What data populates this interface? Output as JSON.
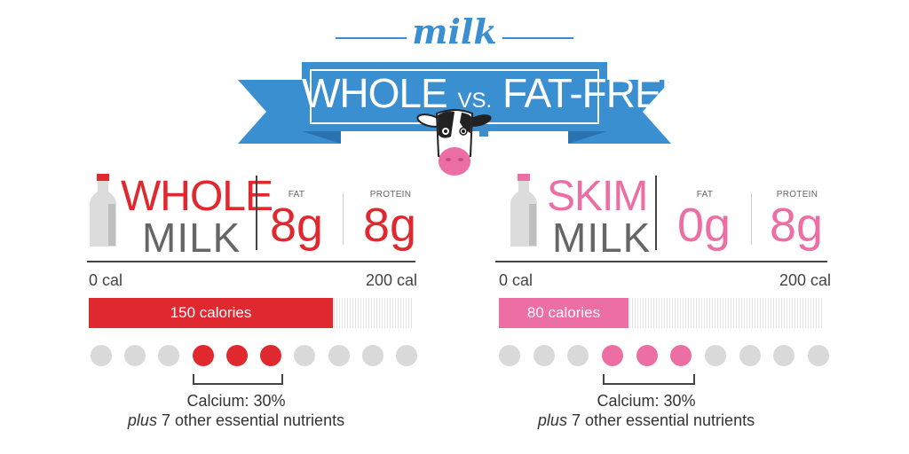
{
  "colors": {
    "accent_blue": "#3a8fd0",
    "banner_dark": "#2b73b0",
    "whole_red": "#e0282f",
    "skim_pink": "#ec6ea3",
    "dot_gray": "#d9d9d9",
    "bottle_gray": "#dcdcdc"
  },
  "header": {
    "milk_label": "milk",
    "banner": {
      "left": "WHOLE",
      "vs": "VS.",
      "right": "FAT-FREE"
    }
  },
  "panels": [
    {
      "id": "whole",
      "word1": "WHOLE",
      "word2": "MILK",
      "fat_label": "FAT",
      "fat_value": "8g",
      "protein_label": "PROTEIN",
      "protein_value": "8g",
      "axis_min_label": "0 cal",
      "axis_max_label": "200 cal",
      "bar_label": "150 calories",
      "calcium_text": "Calcium: 30%",
      "plus_word": "plus",
      "plus_rest": " 7 other essential nutrients"
    },
    {
      "id": "skim",
      "word1": "SKIM",
      "word2": "MILK",
      "fat_label": "FAT",
      "fat_value": "0g",
      "protein_label": "PROTEIN",
      "protein_value": "8g",
      "axis_min_label": "0 cal",
      "axis_max_label": "200 cal",
      "bar_label": "80 calories",
      "calcium_text": "Calcium: 30%",
      "plus_word": "plus",
      "plus_rest": " 7 other essential nutrients"
    }
  ],
  "chart_data": [
    {
      "type": "bar",
      "orientation": "horizontal",
      "categories": [
        "Whole milk"
      ],
      "values": [
        150
      ],
      "xlim": [
        0,
        200
      ],
      "nutrient_dots": {
        "total": 10,
        "filled": [
          3,
          4,
          5
        ]
      }
    },
    {
      "type": "bar",
      "orientation": "horizontal",
      "categories": [
        "Skim milk"
      ],
      "values": [
        80
      ],
      "xlim": [
        0,
        200
      ],
      "nutrient_dots": {
        "total": 10,
        "filled": [
          3,
          4,
          5
        ]
      }
    }
  ]
}
